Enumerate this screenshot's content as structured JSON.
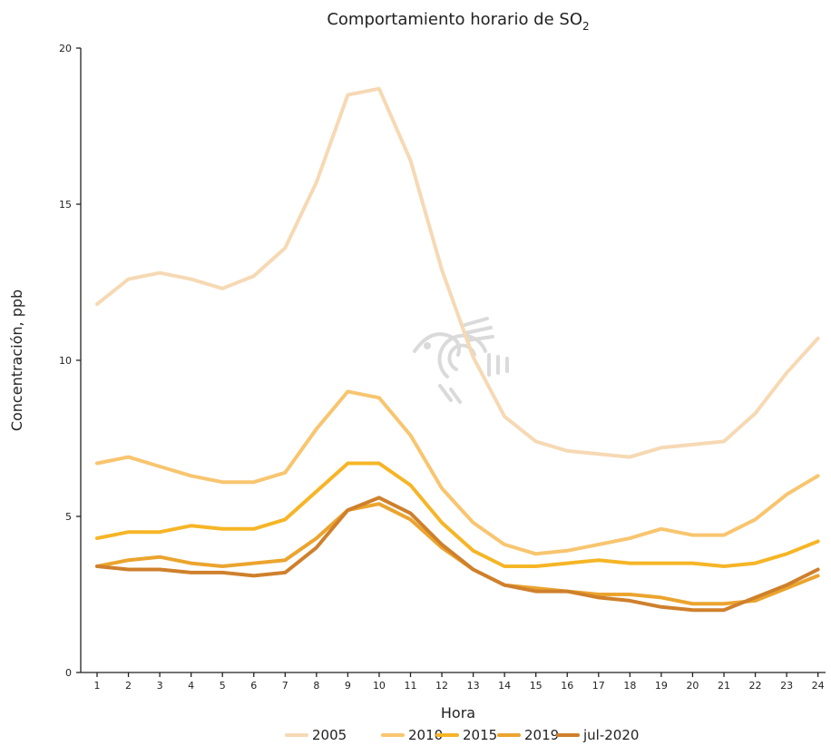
{
  "chart_data": {
    "type": "line",
    "title": "Comportamiento horario de SO",
    "title_subscript": "2",
    "xlabel": "Hora",
    "ylabel": "Concentración, ppb",
    "x": [
      1,
      2,
      3,
      4,
      5,
      6,
      7,
      8,
      9,
      10,
      11,
      12,
      13,
      14,
      15,
      16,
      17,
      18,
      19,
      20,
      21,
      22,
      23,
      24
    ],
    "x_tick_labels": [
      "1",
      "2",
      "3",
      "4",
      "5",
      "6",
      "7",
      "8",
      "9",
      "10",
      "11",
      "12",
      "13",
      "14",
      "15",
      "16",
      "17",
      "18",
      "19",
      "20",
      "21",
      "22",
      "23",
      "24"
    ],
    "ylim": [
      0,
      20
    ],
    "y_ticks": [
      0,
      5,
      10,
      15,
      20
    ],
    "y_tick_labels": [
      "0",
      "5",
      "10",
      "15",
      "20"
    ],
    "grid": false,
    "legend_position": "bottom",
    "series": [
      {
        "name": "2005",
        "color": "#f6d9b4",
        "values": [
          11.8,
          12.6,
          12.8,
          12.6,
          12.3,
          12.7,
          13.6,
          15.7,
          18.5,
          18.7,
          16.4,
          12.9,
          10.1,
          8.2,
          7.4,
          7.1,
          7.0,
          6.9,
          7.2,
          7.3,
          7.4,
          8.3,
          9.6,
          10.7
        ]
      },
      {
        "name": "2010",
        "color": "#f8c56f",
        "values": [
          6.7,
          6.9,
          6.6,
          6.3,
          6.1,
          6.1,
          6.4,
          7.8,
          9.0,
          8.8,
          7.6,
          5.9,
          4.8,
          4.1,
          3.8,
          3.9,
          4.1,
          4.3,
          4.6,
          4.4,
          4.4,
          4.9,
          5.7,
          6.3
        ]
      },
      {
        "name": "2015",
        "color": "#f6b526",
        "values": [
          4.3,
          4.5,
          4.5,
          4.7,
          4.6,
          4.6,
          4.9,
          5.8,
          6.7,
          6.7,
          6.0,
          4.8,
          3.9,
          3.4,
          3.4,
          3.5,
          3.6,
          3.5,
          3.5,
          3.5,
          3.4,
          3.5,
          3.8,
          4.2
        ]
      },
      {
        "name": "2019",
        "color": "#eba42e",
        "values": [
          3.4,
          3.6,
          3.7,
          3.5,
          3.4,
          3.5,
          3.6,
          4.3,
          5.2,
          5.4,
          4.9,
          4.0,
          3.3,
          2.8,
          2.7,
          2.6,
          2.5,
          2.5,
          2.4,
          2.2,
          2.2,
          2.3,
          2.7,
          3.1
        ]
      },
      {
        "name": "jul-2020",
        "color": "#cf802c",
        "values": [
          3.4,
          3.3,
          3.3,
          3.2,
          3.2,
          3.1,
          3.2,
          4.0,
          5.2,
          5.6,
          5.1,
          4.1,
          3.3,
          2.8,
          2.6,
          2.6,
          2.4,
          2.3,
          2.1,
          2.0,
          2.0,
          2.4,
          2.8,
          3.3
        ]
      }
    ]
  },
  "watermark": {
    "icon": "bird-glyph-logo-icon",
    "color": "#cfcfcf"
  }
}
